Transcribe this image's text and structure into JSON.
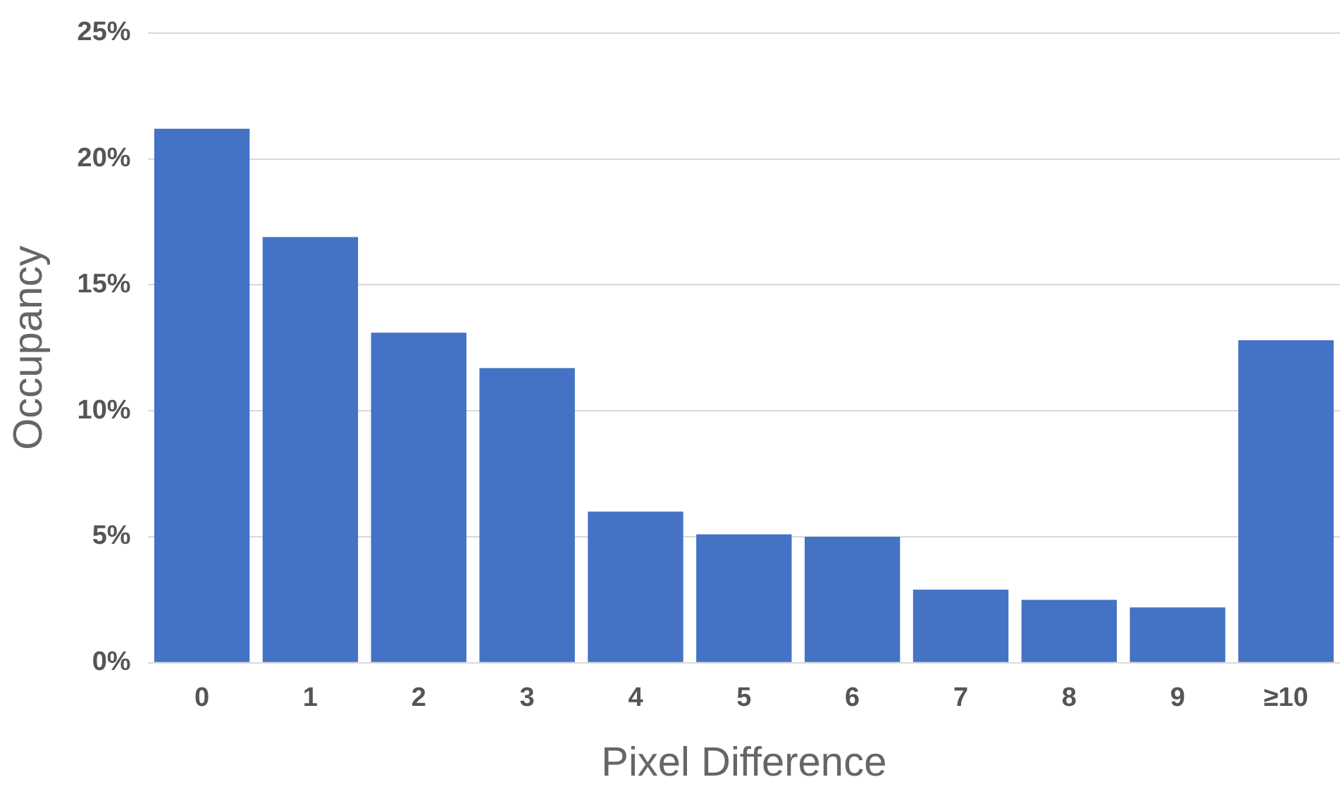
{
  "chart_data": {
    "type": "bar",
    "xlabel": "Pixel Difference",
    "ylabel": "Occupancy",
    "categories": [
      "0",
      "1",
      "2",
      "3",
      "4",
      "5",
      "6",
      "7",
      "8",
      "9",
      "≥10"
    ],
    "values": [
      21.2,
      16.9,
      13.1,
      11.7,
      6.0,
      5.1,
      5.0,
      2.9,
      2.5,
      2.2,
      12.8
    ],
    "color": "#4472c4",
    "ylim": [
      0,
      25
    ],
    "yticks": [
      {
        "value": 0,
        "label": "0%"
      },
      {
        "value": 5,
        "label": "5%"
      },
      {
        "value": 10,
        "label": "10%"
      },
      {
        "value": 15,
        "label": "15%"
      },
      {
        "value": 20,
        "label": "20%"
      },
      {
        "value": 25,
        "label": "25%"
      }
    ],
    "grid": "y",
    "legend": false
  }
}
